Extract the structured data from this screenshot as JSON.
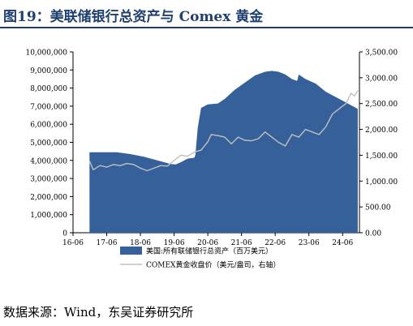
{
  "title": "图19：美联储银行总资产与 Comex 黄金",
  "source": "数据来源：Wind，东吴证券研究所",
  "chart_data": {
    "type": "area",
    "x_ticks": [
      "16-06",
      "17-06",
      "18-06",
      "19-06",
      "20-06",
      "21-06",
      "22-06",
      "23-06",
      "24-06"
    ],
    "y_left_ticks": [
      "0",
      "1,000,000",
      "2,000,000",
      "3,000,000",
      "4,000,000",
      "5,000,000",
      "6,000,000",
      "7,000,000",
      "8,000,000",
      "9,000,000",
      "10,000,000"
    ],
    "y_right_ticks": [
      "0.00",
      "500.00",
      "1,000.00",
      "1,500.00",
      "2,000.00",
      "2,500.00",
      "3,000.00",
      "3,500.00"
    ],
    "ylim_left": [
      0,
      10000000
    ],
    "ylim_right": [
      0,
      3500
    ],
    "colors": {
      "area": "#36609a",
      "line": "#c0c0c0"
    },
    "series": [
      {
        "name": "美国:所有联储银行总资产（百万美元）",
        "axis": "left",
        "kind": "area",
        "x": [
          2016.99,
          2017.5,
          2017.8,
          2018.2,
          2018.6,
          2019.0,
          2019.4,
          2019.55,
          2019.7,
          2019.9,
          2020.1,
          2020.13,
          2020.2,
          2020.3,
          2020.5,
          2020.8,
          2021.0,
          2021.3,
          2021.6,
          2021.9,
          2022.2,
          2022.4,
          2022.6,
          2022.8,
          2023.0,
          2023.15,
          2023.2,
          2023.4,
          2023.7,
          2024.0,
          2024.3,
          2024.6,
          2024.8,
          2024.95
        ],
        "y": [
          4450000,
          4450000,
          4450000,
          4350000,
          4200000,
          4000000,
          3800000,
          3780000,
          3900000,
          4100000,
          4150000,
          4300000,
          5800000,
          6900000,
          7100000,
          7150000,
          7400000,
          7900000,
          8300000,
          8700000,
          8900000,
          8950000,
          8900000,
          8750000,
          8500000,
          8400000,
          8750000,
          8500000,
          8250000,
          7800000,
          7500000,
          7200000,
          7000000,
          6850000
        ]
      },
      {
        "name": "COMEX黄金收盘价（美元/盎司，右轴）",
        "axis": "right",
        "kind": "line",
        "x": [
          2016.99,
          2017.1,
          2017.3,
          2017.5,
          2017.7,
          2017.9,
          2018.1,
          2018.3,
          2018.5,
          2018.7,
          2018.9,
          2019.1,
          2019.3,
          2019.5,
          2019.7,
          2019.9,
          2020.1,
          2020.3,
          2020.5,
          2020.6,
          2020.8,
          2021.0,
          2021.2,
          2021.4,
          2021.6,
          2021.8,
          2022.0,
          2022.2,
          2022.4,
          2022.6,
          2022.8,
          2023.0,
          2023.2,
          2023.4,
          2023.6,
          2023.8,
          2024.0,
          2024.2,
          2024.4,
          2024.6,
          2024.75,
          2024.85,
          2024.95
        ],
        "y": [
          1390,
          1220,
          1300,
          1270,
          1320,
          1300,
          1340,
          1320,
          1250,
          1200,
          1250,
          1300,
          1290,
          1400,
          1500,
          1480,
          1560,
          1600,
          1760,
          1900,
          1880,
          1850,
          1720,
          1850,
          1790,
          1780,
          1820,
          1950,
          1850,
          1750,
          1680,
          1900,
          1850,
          2000,
          1950,
          1900,
          2050,
          2300,
          2400,
          2500,
          2700,
          2650,
          2750
        ]
      }
    ],
    "legend": {
      "position": "bottom",
      "area_label": "美国:所有联储银行总资产（百万美元）",
      "line_label": "COMEX黄金收盘价（美元/盎司，右轴）"
    }
  }
}
